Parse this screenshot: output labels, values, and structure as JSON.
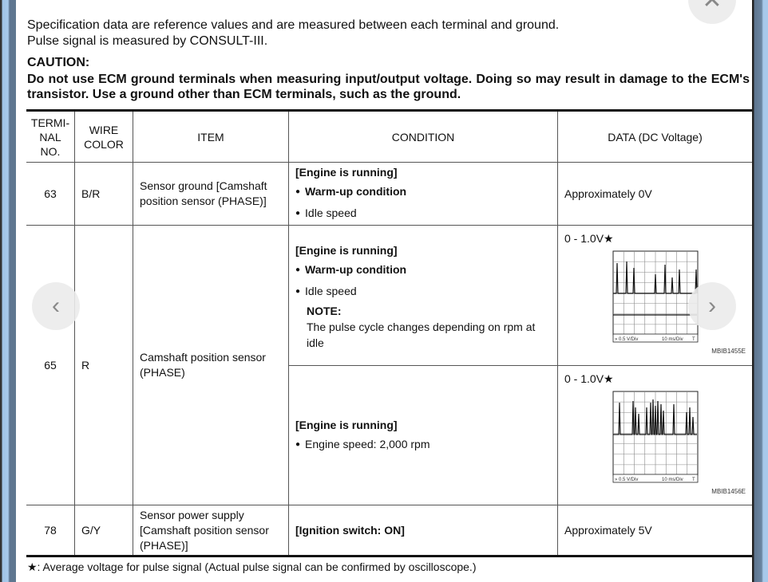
{
  "intro": {
    "line1": "Specification data are reference values and are measured between each terminal and ground.",
    "line2": "Pulse signal is measured by CONSULT-III."
  },
  "caution": {
    "title": "CAUTION:",
    "text": "Do not use ECM ground terminals when measuring input/output voltage. Doing so may result in damage to the ECM's transistor. Use a ground other than ECM terminals, such as the ground."
  },
  "table": {
    "headers": [
      "TERMI-NAL NO.",
      "WIRE COLOR",
      "ITEM",
      "CONDITION",
      "DATA (DC Voltage)"
    ],
    "rows": [
      {
        "terminal": "63",
        "wire": "B/R",
        "item": "Sensor ground [Camshaft position sensor (PHASE)]",
        "cond_head": "[Engine is running]",
        "cond_b1": "Warm-up condition",
        "cond_b2": "Idle speed",
        "data": "Approximately 0V"
      },
      {
        "terminal": "65",
        "wire": "R",
        "item": "Camshaft position sensor (PHASE)",
        "sub": [
          {
            "cond_head": "[Engine is running]",
            "cond_b1": "Warm-up condition",
            "cond_b2": "Idle speed",
            "note_title": "NOTE:",
            "note": "The pulse cycle changes depending on rpm at idle",
            "data": "0 - 1.0V★",
            "scope_left": "0.5 V/Div",
            "scope_right": "10 ms/Div",
            "scope_trig": "T",
            "code": "MBIB1455E"
          },
          {
            "cond_head": "[Engine is running]",
            "cond_b1": "Engine speed: 2,000 rpm",
            "data": "0 - 1.0V★",
            "scope_left": "0.5 V/Div",
            "scope_right": "10 ms/Div",
            "scope_trig": "T",
            "code": "MBIB1456E"
          }
        ]
      },
      {
        "terminal": "78",
        "wire": "G/Y",
        "item": "Sensor power supply [Camshaft position sensor (PHASE)]",
        "cond_head": "[Ignition switch: ON]",
        "data": "Approximately 5V"
      }
    ]
  },
  "footnote": "★: Average voltage for pulse signal (Actual pulse signal can be confirmed by oscilloscope.)",
  "nav": {
    "prev": "‹",
    "next": "›",
    "close": "✕"
  }
}
